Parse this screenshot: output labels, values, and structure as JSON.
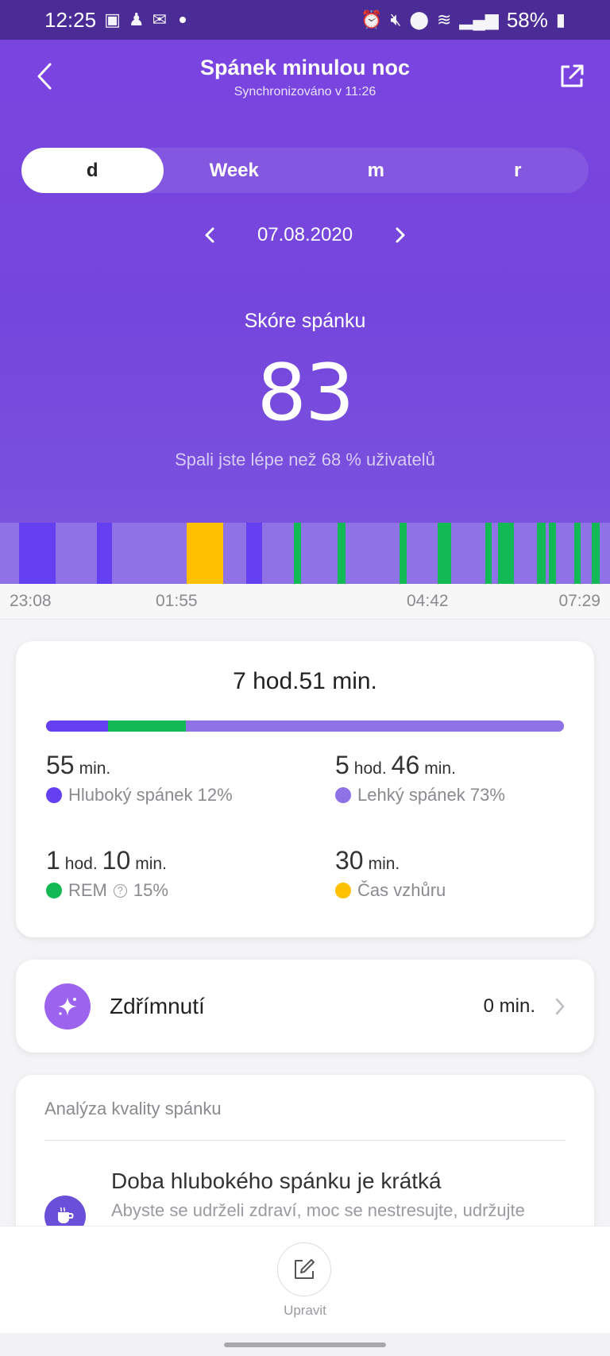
{
  "status_bar": {
    "time": "12:25",
    "battery": "58%"
  },
  "header": {
    "title": "Spánek minulou noc",
    "subtitle": "Synchronizováno v 11:26"
  },
  "tabs": [
    {
      "label": "d",
      "active": true
    },
    {
      "label": "Week",
      "active": false
    },
    {
      "label": "m",
      "active": false
    },
    {
      "label": "r",
      "active": false
    }
  ],
  "date_nav": {
    "date": "07.08.2020"
  },
  "score": {
    "label": "Skóre spánku",
    "value": "83",
    "note": "Spali jste lépe než 68 % uživatelů"
  },
  "timeline": {
    "ticks": [
      "23:08",
      "01:55",
      "04:42",
      "07:29"
    ],
    "colors": {
      "deep": "#6540f0",
      "light": "#8e72e6",
      "rem": "#13b955",
      "awake": "#ffc000"
    },
    "segments": [
      {
        "stage": "light",
        "start": 0.0,
        "end": 0.031
      },
      {
        "stage": "deep",
        "start": 0.031,
        "end": 0.091
      },
      {
        "stage": "light",
        "start": 0.091,
        "end": 0.159
      },
      {
        "stage": "deep",
        "start": 0.159,
        "end": 0.184
      },
      {
        "stage": "light",
        "start": 0.184,
        "end": 0.306
      },
      {
        "stage": "awake",
        "start": 0.306,
        "end": 0.366
      },
      {
        "stage": "light",
        "start": 0.366,
        "end": 0.404
      },
      {
        "stage": "deep",
        "start": 0.404,
        "end": 0.43
      },
      {
        "stage": "light",
        "start": 0.43,
        "end": 0.482
      },
      {
        "stage": "rem",
        "start": 0.482,
        "end": 0.493
      },
      {
        "stage": "light",
        "start": 0.493,
        "end": 0.553
      },
      {
        "stage": "rem",
        "start": 0.553,
        "end": 0.566
      },
      {
        "stage": "light",
        "start": 0.566,
        "end": 0.655
      },
      {
        "stage": "rem",
        "start": 0.655,
        "end": 0.667
      },
      {
        "stage": "light",
        "start": 0.667,
        "end": 0.717
      },
      {
        "stage": "rem",
        "start": 0.717,
        "end": 0.74
      },
      {
        "stage": "light",
        "start": 0.74,
        "end": 0.796
      },
      {
        "stage": "rem",
        "start": 0.796,
        "end": 0.806
      },
      {
        "stage": "light",
        "start": 0.806,
        "end": 0.817
      },
      {
        "stage": "rem",
        "start": 0.817,
        "end": 0.842
      },
      {
        "stage": "light",
        "start": 0.842,
        "end": 0.88
      },
      {
        "stage": "rem",
        "start": 0.88,
        "end": 0.894
      },
      {
        "stage": "light",
        "start": 0.894,
        "end": 0.9
      },
      {
        "stage": "rem",
        "start": 0.9,
        "end": 0.912
      },
      {
        "stage": "light",
        "start": 0.912,
        "end": 0.942
      },
      {
        "stage": "rem",
        "start": 0.942,
        "end": 0.952
      },
      {
        "stage": "light",
        "start": 0.952,
        "end": 0.97
      },
      {
        "stage": "rem",
        "start": 0.97,
        "end": 0.983
      },
      {
        "stage": "light",
        "start": 0.983,
        "end": 1.0
      }
    ]
  },
  "summary": {
    "total": "7 hod.51 min.",
    "bar": [
      {
        "stage": "deep",
        "fraction": 0.12
      },
      {
        "stage": "rem",
        "fraction": 0.15
      },
      {
        "stage": "light",
        "fraction": 0.73
      }
    ],
    "stats": {
      "deep": {
        "v1": "55",
        "u1": "min.",
        "label": "Hluboký spánek 12%"
      },
      "light": {
        "v1": "5",
        "u1": "hod.",
        "v2": "46",
        "u2": "min.",
        "label": "Lehký spánek 73%"
      },
      "rem": {
        "v1": "1",
        "u1": "hod.",
        "v2": "10",
        "u2": "min.",
        "label": "REM",
        "pct": "15%"
      },
      "awake": {
        "v1": "30",
        "u1": "min.",
        "label": "Čas vzhůru"
      }
    }
  },
  "nap": {
    "label": "Zdřímnutí",
    "value": "0 min."
  },
  "analysis": {
    "title": "Analýza kvality spánku",
    "item_title": "Doba hlubokého spánku je krátká",
    "item_text": "Abyste se udrželi zdraví, moc se nestresujte, udržujte"
  },
  "bottom": {
    "edit_label": "Upravit"
  }
}
